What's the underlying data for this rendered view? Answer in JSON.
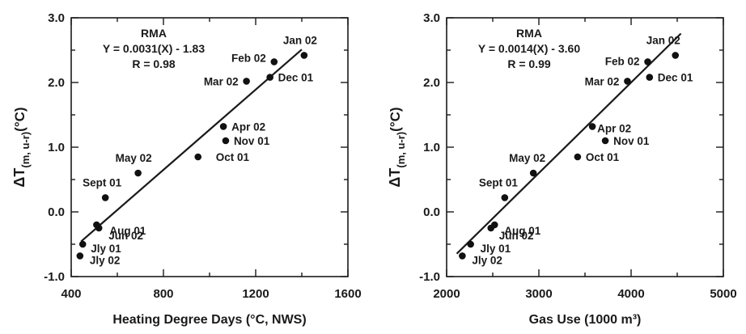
{
  "chart_data": [
    {
      "type": "scatter",
      "title": "",
      "xlabel": "Heating Degree Days (°C, NWS)",
      "ylabel": "ΔT(m, u-r)(°C)",
      "ylabel_parts": {
        "main": "ΔT",
        "sub": "(m, u-r)",
        "unit": "(°C)"
      },
      "xlim": [
        400,
        1600
      ],
      "ylim": [
        -1.0,
        3.0
      ],
      "xticks": [
        "400",
        "800",
        "1200",
        "1600"
      ],
      "yticks": [
        "-1.0",
        "0.0",
        "1.0",
        "2.0",
        "3.0"
      ],
      "annotation": [
        "RMA",
        "Y = 0.0031(X) - 1.83",
        "R = 0.98"
      ],
      "fit_line": {
        "slope": 0.0031,
        "intercept": -1.83,
        "x_range": [
          443,
          1400
        ]
      },
      "points": [
        {
          "label": "Jan 02",
          "x": 1410,
          "y": 2.42
        },
        {
          "label": "Feb 02",
          "x": 1280,
          "y": 2.32
        },
        {
          "label": "Dec 01",
          "x": 1262,
          "y": 2.08
        },
        {
          "label": "Mar 02",
          "x": 1160,
          "y": 2.02
        },
        {
          "label": "Apr 02",
          "x": 1060,
          "y": 1.32
        },
        {
          "label": "Nov 01",
          "x": 1070,
          "y": 1.1
        },
        {
          "label": "Oct 01",
          "x": 950,
          "y": 0.85
        },
        {
          "label": "May 02",
          "x": 690,
          "y": 0.6
        },
        {
          "label": "Sept 01",
          "x": 548,
          "y": 0.22
        },
        {
          "label": "Aug 01",
          "x": 510,
          "y": -0.2
        },
        {
          "label": "Jun 02",
          "x": 520,
          "y": -0.25
        },
        {
          "label": "Jly 01",
          "x": 450,
          "y": -0.5
        },
        {
          "label": "Jly 02",
          "x": 438,
          "y": -0.68
        }
      ]
    },
    {
      "type": "scatter",
      "title": "",
      "xlabel": "Gas Use (1000 m³)",
      "ylabel": "ΔT(m, u-r)(°C)",
      "ylabel_parts": {
        "main": "ΔT",
        "sub": "(m, u-r)",
        "unit": "(°C)"
      },
      "xlim": [
        2000,
        5000
      ],
      "ylim": [
        -1.0,
        3.0
      ],
      "xticks": [
        "2000",
        "3000",
        "4000",
        "5000"
      ],
      "yticks": [
        "-1.0",
        "0.0",
        "1.0",
        "2.0",
        "3.0"
      ],
      "annotation": [
        "RMA",
        "Y = 0.0014(X) - 3.60",
        "R = 0.99"
      ],
      "fit_line": {
        "slope": 0.0014,
        "intercept": -3.6,
        "x_range": [
          2110,
          4540
        ]
      },
      "points": [
        {
          "label": "Jan 02",
          "x": 4480,
          "y": 2.42
        },
        {
          "label": "Feb 02",
          "x": 4180,
          "y": 2.32
        },
        {
          "label": "Dec 01",
          "x": 4200,
          "y": 2.08
        },
        {
          "label": "Mar 02",
          "x": 3960,
          "y": 2.02
        },
        {
          "label": "Apr 02",
          "x": 3580,
          "y": 1.32
        },
        {
          "label": "Nov 01",
          "x": 3720,
          "y": 1.1
        },
        {
          "label": "Oct 01",
          "x": 3420,
          "y": 0.85
        },
        {
          "label": "May 02",
          "x": 2940,
          "y": 0.6
        },
        {
          "label": "Sept 01",
          "x": 2630,
          "y": 0.22
        },
        {
          "label": "Aug 01",
          "x": 2520,
          "y": -0.2
        },
        {
          "label": "Jun 02",
          "x": 2480,
          "y": -0.25
        },
        {
          "label": "Jly 01",
          "x": 2260,
          "y": -0.5
        },
        {
          "label": "Jly 02",
          "x": 2170,
          "y": -0.68
        }
      ]
    }
  ]
}
